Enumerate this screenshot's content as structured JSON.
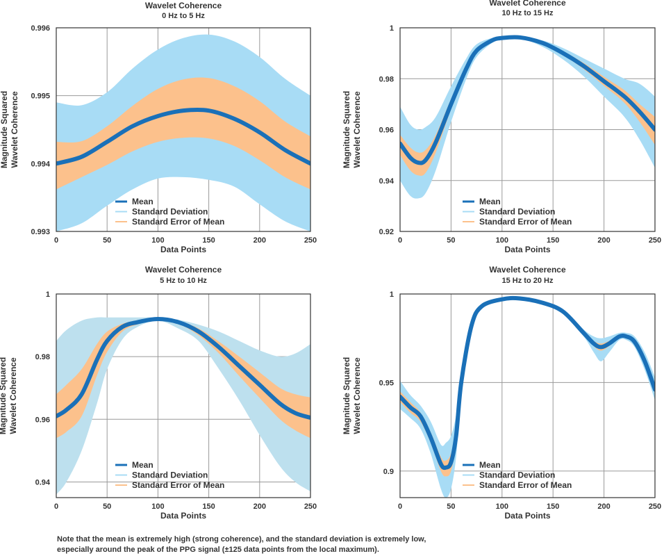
{
  "colors": {
    "mean": "#1a70b8",
    "sd": "#a8dcf5",
    "sd_panel_c": "#bde0ee",
    "sem": "#fcc18c",
    "grid": "#999999",
    "axis": "#333333",
    "text": "#333333"
  },
  "chart_data": [
    {
      "type": "line",
      "title": "Wavelet Coherence",
      "subtitle": "0 Hz to 5 Hz",
      "xlabel": "Data Points",
      "ylabel": [
        "Magnitude Squared",
        "Wavelet Coherence"
      ],
      "xlim": [
        0,
        250
      ],
      "ylim": [
        0.993,
        0.996
      ],
      "xticks": [
        0,
        50,
        100,
        150,
        200,
        250
      ],
      "xtick_labels": [
        "0",
        "50",
        "100",
        "150",
        "200",
        "250"
      ],
      "yticks": [
        0.993,
        0.994,
        0.995,
        0.996
      ],
      "ytick_labels": [
        "0.993",
        "0.994",
        "0.995",
        "0.996"
      ],
      "grid": true,
      "legend": "bottom-center",
      "legend_labels": [
        "Mean",
        "Standard Deviation",
        "Standard Error of Mean"
      ],
      "x": [
        0,
        25,
        50,
        75,
        100,
        125,
        150,
        175,
        200,
        225,
        250
      ],
      "series": [
        {
          "name": "Mean",
          "values": [
            0.994,
            0.9941,
            0.99432,
            0.99455,
            0.9947,
            0.99478,
            0.99478,
            0.99466,
            0.99446,
            0.9942,
            0.994
          ]
        },
        {
          "name": "Standard Deviation",
          "upper": [
            0.9949,
            0.99486,
            0.99505,
            0.9954,
            0.99568,
            0.99585,
            0.9959,
            0.9958,
            0.99557,
            0.99525,
            0.995
          ],
          "lower": [
            0.993,
            0.99312,
            0.99338,
            0.99362,
            0.99378,
            0.9938,
            0.99376,
            0.99366,
            0.9934,
            0.99315,
            0.993
          ]
        },
        {
          "name": "Standard Error of Mean",
          "upper": [
            0.99432,
            0.99433,
            0.99455,
            0.99485,
            0.9951,
            0.99524,
            0.99526,
            0.99514,
            0.99492,
            0.99462,
            0.9944
          ],
          "lower": [
            0.99362,
            0.9938,
            0.99398,
            0.99418,
            0.99432,
            0.99438,
            0.99437,
            0.99426,
            0.99405,
            0.9938,
            0.99362
          ]
        }
      ]
    },
    {
      "type": "line",
      "title": "Wavelet Coherence",
      "subtitle": "10 Hz to 15 Hz",
      "xlabel": "Data Points",
      "ylabel": [
        "Magnitude Squared",
        "Wavelet Coherence"
      ],
      "xlim": [
        0,
        250
      ],
      "ylim": [
        0.92,
        1.0
      ],
      "xticks": [
        0,
        50,
        100,
        150,
        200,
        250
      ],
      "xtick_labels": [
        "0",
        "50",
        "100",
        "150",
        "200",
        "250"
      ],
      "yticks": [
        0.92,
        0.94,
        0.96,
        0.98,
        1.0
      ],
      "ytick_labels": [
        "0.92",
        "0.94",
        "0.96",
        "0.98",
        "1"
      ],
      "grid": true,
      "legend": "bottom-center",
      "legend_labels": [
        "Mean",
        "Standard Deviation",
        "Standard Error of Mean"
      ],
      "x": [
        0,
        10,
        18,
        25,
        35,
        50,
        65,
        75,
        90,
        100,
        118,
        140,
        160,
        180,
        200,
        220,
        235,
        250
      ],
      "series": [
        {
          "name": "Mean",
          "values": [
            0.9545,
            0.949,
            0.947,
            0.948,
            0.955,
            0.97,
            0.984,
            0.991,
            0.995,
            0.996,
            0.9962,
            0.994,
            0.99,
            0.985,
            0.979,
            0.973,
            0.967,
            0.96
          ]
        },
        {
          "name": "Standard Deviation",
          "upper": [
            0.969,
            0.962,
            0.96,
            0.961,
            0.965,
            0.977,
            0.988,
            0.9935,
            0.996,
            0.9965,
            0.9965,
            0.995,
            0.992,
            0.988,
            0.984,
            0.98,
            0.978,
            0.973
          ],
          "lower": [
            0.94,
            0.934,
            0.933,
            0.935,
            0.944,
            0.963,
            0.98,
            0.9885,
            0.994,
            0.9955,
            0.9958,
            0.9925,
            0.9875,
            0.981,
            0.973,
            0.965,
            0.956,
            0.945
          ]
        },
        {
          "name": "Standard Error of Mean",
          "upper": [
            0.958,
            0.953,
            0.951,
            0.952,
            0.958,
            0.972,
            0.985,
            0.9915,
            0.9953,
            0.9962,
            0.9963,
            0.9944,
            0.9908,
            0.9862,
            0.9808,
            0.9755,
            0.97,
            0.965
          ],
          "lower": [
            0.95,
            0.944,
            0.942,
            0.943,
            0.951,
            0.968,
            0.983,
            0.9905,
            0.9947,
            0.9958,
            0.996,
            0.9936,
            0.9892,
            0.9838,
            0.9772,
            0.9705,
            0.963,
            0.954
          ]
        }
      ]
    },
    {
      "type": "line",
      "title": "Wavelet Coherence",
      "subtitle": "5 Hz to 10 Hz",
      "xlabel": "Data Points",
      "ylabel": [
        "Magnitude Squared",
        "Wavelet Coherence"
      ],
      "xlim": [
        0,
        250
      ],
      "ylim": [
        0.935,
        1.0
      ],
      "xticks": [
        0,
        50,
        100,
        150,
        200,
        250
      ],
      "xtick_labels": [
        "0",
        "50",
        "100",
        "150",
        "200",
        "250"
      ],
      "yticks": [
        0.94,
        0.96,
        0.98,
        1.0
      ],
      "ytick_labels": [
        "0.94",
        "0.96",
        "0.98",
        "1"
      ],
      "grid": true,
      "legend": "bottom-center",
      "legend_labels": [
        "Mean",
        "Standard Deviation",
        "Standard Error of Mean"
      ],
      "x": [
        0,
        10,
        25,
        40,
        50,
        65,
        80,
        100,
        120,
        140,
        160,
        180,
        200,
        220,
        235,
        250
      ],
      "series": [
        {
          "name": "Mean",
          "values": [
            0.961,
            0.963,
            0.968,
            0.979,
            0.985,
            0.9895,
            0.991,
            0.992,
            0.991,
            0.988,
            0.983,
            0.977,
            0.971,
            0.965,
            0.962,
            0.9605
          ]
        },
        {
          "name": "Standard Deviation",
          "upper": [
            0.985,
            0.9885,
            0.9915,
            0.9925,
            0.9925,
            0.9925,
            0.9925,
            0.9925,
            0.9918,
            0.9902,
            0.988,
            0.985,
            0.982,
            0.98,
            0.981,
            0.984
          ],
          "lower": [
            0.936,
            0.94,
            0.95,
            0.965,
            0.976,
            0.9855,
            0.9895,
            0.9915,
            0.989,
            0.985,
            0.976,
            0.966,
            0.955,
            0.945,
            0.94,
            0.937
          ]
        },
        {
          "name": "Standard Error of Mean",
          "upper": [
            0.968,
            0.971,
            0.976,
            0.984,
            0.988,
            0.9905,
            0.9915,
            0.9922,
            0.9914,
            0.989,
            0.9848,
            0.98,
            0.975,
            0.97,
            0.968,
            0.967
          ],
          "lower": [
            0.954,
            0.956,
            0.961,
            0.974,
            0.9815,
            0.988,
            0.9903,
            0.9918,
            0.9905,
            0.9868,
            0.981,
            0.9738,
            0.9668,
            0.96,
            0.9565,
            0.954
          ]
        }
      ]
    },
    {
      "type": "line",
      "title": "Wavelet Coherence",
      "subtitle": "15 Hz to 20 Hz",
      "xlabel": "Data Points",
      "ylabel": [
        "Magnitude Squared",
        "Wavelet Coherence"
      ],
      "xlim": [
        0,
        250
      ],
      "ylim": [
        0.885,
        1.0
      ],
      "xticks": [
        0,
        50,
        100,
        150,
        200,
        250
      ],
      "xtick_labels": [
        "0",
        "50",
        "100",
        "150",
        "200",
        "250"
      ],
      "yticks": [
        0.9,
        0.95,
        1.0
      ],
      "ytick_labels": [
        "0.9",
        "0.95",
        "1"
      ],
      "grid": true,
      "legend": "bottom-center",
      "legend_labels": [
        "Mean",
        "Standard Deviation",
        "Standard Error of Mean"
      ],
      "x": [
        0,
        10,
        20,
        30,
        40,
        45,
        50,
        55,
        60,
        70,
        80,
        100,
        117,
        140,
        160,
        180,
        190,
        197,
        205,
        215,
        222,
        230,
        240,
        250
      ],
      "series": [
        {
          "name": "Mean",
          "values": [
            0.942,
            0.936,
            0.931,
            0.919,
            0.904,
            0.902,
            0.905,
            0.92,
            0.95,
            0.982,
            0.993,
            0.997,
            0.9975,
            0.995,
            0.99,
            0.978,
            0.972,
            0.97,
            0.972,
            0.976,
            0.976,
            0.973,
            0.962,
            0.946
          ]
        },
        {
          "name": "Standard Deviation",
          "upper": [
            0.951,
            0.943,
            0.937,
            0.928,
            0.915,
            0.916,
            0.92,
            0.932,
            0.957,
            0.985,
            0.9945,
            0.9978,
            0.9982,
            0.9958,
            0.991,
            0.98,
            0.976,
            0.975,
            0.976,
            0.978,
            0.978,
            0.976,
            0.967,
            0.953
          ],
          "lower": [
            0.935,
            0.93,
            0.924,
            0.91,
            0.89,
            0.885,
            0.89,
            0.908,
            0.943,
            0.979,
            0.9915,
            0.9962,
            0.9968,
            0.9942,
            0.989,
            0.976,
            0.967,
            0.962,
            0.967,
            0.974,
            0.974,
            0.97,
            0.957,
            0.94
          ]
        },
        {
          "name": "Standard Error of Mean",
          "upper": [
            0.945,
            0.939,
            0.933,
            0.922,
            0.908,
            0.906,
            0.91,
            0.924,
            0.953,
            0.983,
            0.9935,
            0.9973,
            0.9978,
            0.9953,
            0.9903,
            0.9788,
            0.9735,
            0.972,
            0.9735,
            0.9768,
            0.9768,
            0.974,
            0.964,
            0.948
          ],
          "lower": [
            0.939,
            0.933,
            0.928,
            0.916,
            0.9,
            0.897,
            0.9,
            0.916,
            0.947,
            0.981,
            0.9925,
            0.9967,
            0.9972,
            0.9947,
            0.9897,
            0.9772,
            0.9705,
            0.968,
            0.9705,
            0.9752,
            0.9752,
            0.972,
            0.96,
            0.944
          ]
        }
      ]
    }
  ],
  "note": {
    "line1": "Note that the mean is extremely high (strong coherence), and the standard deviation is extremely low,",
    "line2": "especially around the peak of the PPG signal (±125 data points from the local maximum)."
  }
}
